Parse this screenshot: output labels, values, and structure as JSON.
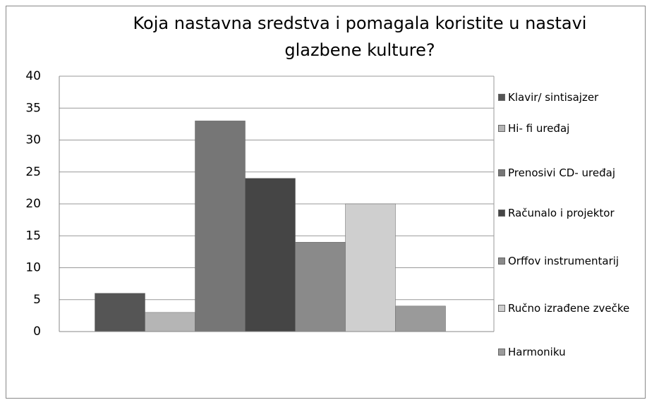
{
  "chart_data": {
    "type": "bar",
    "title": "Koja nastavna sredstva i pomagala koristite u nastavi glazbene kulture?",
    "categories": [
      null
    ],
    "series": [
      {
        "name": "Klavir/ sintisajzer",
        "color": "#555555",
        "values": [
          6
        ]
      },
      {
        "name": "Hi- fi uređaj",
        "color": "#b5b5b5",
        "values": [
          3
        ]
      },
      {
        "name": "Prenosivi CD- uređaj",
        "color": "#767676",
        "values": [
          33
        ]
      },
      {
        "name": "Računalo i projektor",
        "color": "#454545",
        "values": [
          24
        ]
      },
      {
        "name": "Orffov instrumentarij",
        "color": "#8a8a8a",
        "values": [
          14
        ]
      },
      {
        "name": "Ručno izrađene zvečke",
        "color": "#cfcfcf",
        "values": [
          20
        ]
      },
      {
        "name": "Harmoniku",
        "color": "#9a9a9a",
        "values": [
          4
        ]
      }
    ],
    "ylim": [
      0,
      40
    ],
    "yticks": [
      0,
      5,
      10,
      15,
      20,
      25,
      30,
      35,
      40
    ],
    "grid": true,
    "legend": "right"
  }
}
